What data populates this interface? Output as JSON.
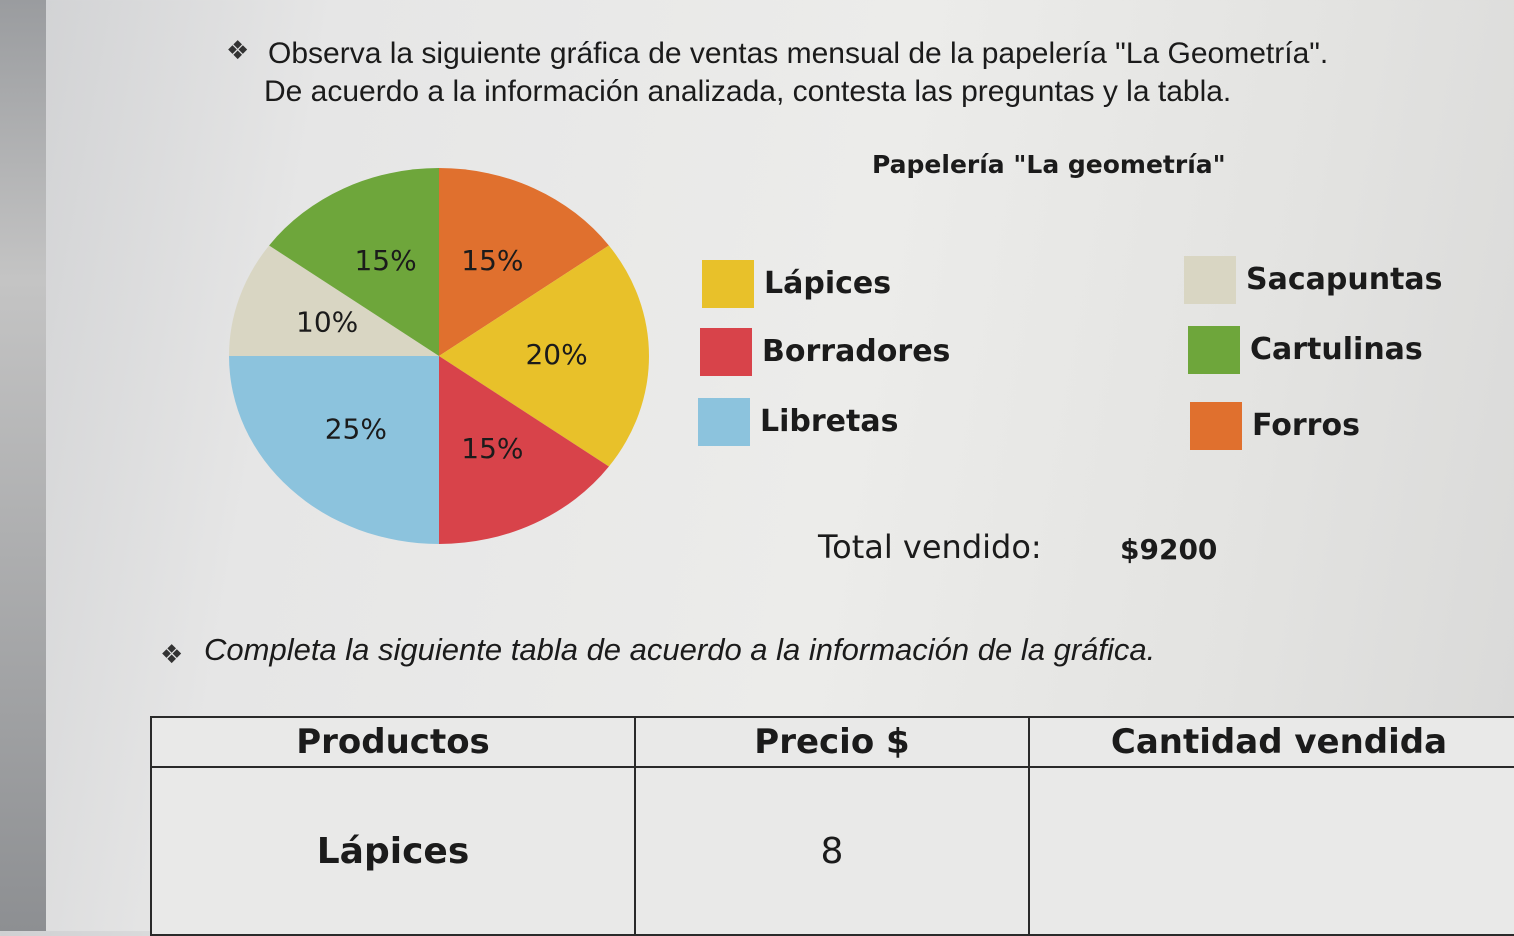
{
  "instructions": {
    "line1": "Observa la siguiente gráfica de ventas mensual de la papelería \"La Geometría\".",
    "line2": "De acuerdo a la información analizada, contesta las preguntas y la tabla.",
    "line3": "Completa la siguiente tabla de acuerdo a la información de la gráfica."
  },
  "chart_data": {
    "type": "pie",
    "title": "Papelería \"La geometría\"",
    "slices": [
      {
        "label": "Forros",
        "value": 15,
        "display": "15%",
        "color": "#e0702e"
      },
      {
        "label": "Lápices",
        "value": 20,
        "display": "20%",
        "color": "#e8c12a"
      },
      {
        "label": "Borradores",
        "value": 15,
        "display": "15%",
        "color": "#d8434a"
      },
      {
        "label": "Libretas",
        "value": 25,
        "display": "25%",
        "color": "#8cc3dd"
      },
      {
        "label": "Sacapuntas",
        "value": 10,
        "display": "10%",
        "color": "#d9d6c3"
      },
      {
        "label": "Cartulinas",
        "value": 15,
        "display": "15%",
        "color": "#6ea63b"
      }
    ],
    "legend": [
      "Lápices",
      "Borradores",
      "Libretas",
      "Sacapuntas",
      "Cartulinas",
      "Forros"
    ],
    "legend_placement": "right"
  },
  "total": {
    "label": "Total vendido:",
    "value": "$9200"
  },
  "table": {
    "headers": [
      "Productos",
      "Precio $",
      "Cantidad vendida"
    ],
    "rows": [
      [
        "Lápices",
        "8",
        ""
      ]
    ]
  }
}
